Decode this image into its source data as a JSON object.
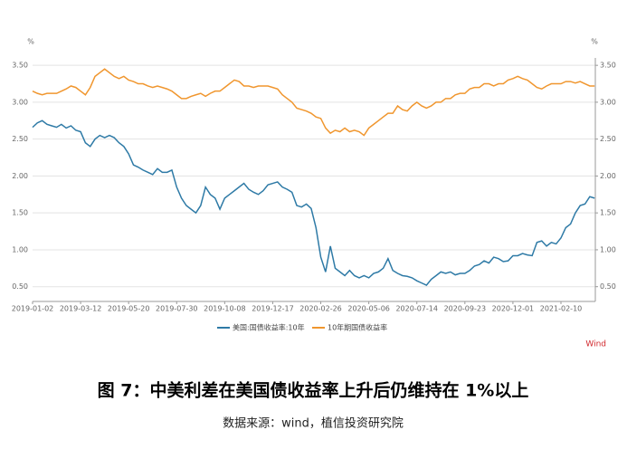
{
  "chart_data": {
    "type": "line",
    "ylabel": "%",
    "y2label": "%",
    "ylim": [
      0.3,
      3.6
    ],
    "y2lim": [
      0.3,
      3.6
    ],
    "yticks": [
      {
        "value": 0.5,
        "label": "0.50"
      },
      {
        "value": 1,
        "label": "1.00"
      },
      {
        "value": 1.5,
        "label": "1.50"
      },
      {
        "value": 2,
        "label": "2.00"
      },
      {
        "value": 2.5,
        "label": "2.50"
      },
      {
        "value": 3,
        "label": "3.00"
      },
      {
        "value": 3.5,
        "label": "3.50"
      }
    ],
    "y2ticks": [
      {
        "value": 0.5,
        "label": "0.50"
      },
      {
        "value": 1,
        "label": "1.00"
      },
      {
        "value": 1.5,
        "label": "1.50"
      },
      {
        "value": 2,
        "label": "2.00"
      },
      {
        "value": 2.5,
        "label": "2.50"
      },
      {
        "value": 3,
        "label": "3.00"
      },
      {
        "value": 3.5,
        "label": "3.50"
      }
    ],
    "grid": true,
    "legend": "bottom",
    "categories": [
      "2019-01-02",
      null,
      null,
      null,
      null,
      null,
      null,
      null,
      null,
      null,
      "2019-03-12",
      null,
      null,
      null,
      null,
      null,
      null,
      null,
      null,
      null,
      "2019-05-20",
      null,
      null,
      null,
      null,
      null,
      null,
      null,
      null,
      null,
      "2019-07-30",
      null,
      null,
      null,
      null,
      null,
      null,
      null,
      null,
      null,
      "2019-10-08",
      null,
      null,
      null,
      null,
      null,
      null,
      null,
      null,
      null,
      "2019-12-17",
      null,
      null,
      null,
      null,
      null,
      null,
      null,
      null,
      null,
      "2020-02-26",
      null,
      null,
      null,
      null,
      null,
      null,
      null,
      null,
      null,
      "2020-05-06",
      null,
      null,
      null,
      null,
      null,
      null,
      null,
      null,
      null,
      "2020-07-14",
      null,
      null,
      null,
      null,
      null,
      null,
      null,
      null,
      null,
      "2020-09-23",
      null,
      null,
      null,
      null,
      null,
      null,
      null,
      null,
      null,
      "2020-12-01",
      null,
      null,
      null,
      null,
      null,
      null,
      null,
      null,
      null,
      "2021-02-10",
      null,
      null,
      null,
      null,
      null,
      null,
      null
    ],
    "series": [
      {
        "name": "美国:国债收益率:10年",
        "color": "#2e7aa6",
        "values": [
          2.66,
          2.72,
          2.75,
          2.7,
          2.68,
          2.66,
          2.7,
          2.65,
          2.68,
          2.62,
          2.6,
          2.45,
          2.4,
          2.5,
          2.55,
          2.52,
          2.55,
          2.52,
          2.45,
          2.4,
          2.3,
          2.15,
          2.12,
          2.08,
          2.05,
          2.02,
          2.1,
          2.05,
          2.05,
          2.08,
          1.85,
          1.7,
          1.6,
          1.55,
          1.5,
          1.6,
          1.85,
          1.75,
          1.7,
          1.55,
          1.7,
          1.75,
          1.8,
          1.85,
          1.9,
          1.82,
          1.78,
          1.75,
          1.8,
          1.88,
          1.9,
          1.92,
          1.85,
          1.82,
          1.78,
          1.6,
          1.58,
          1.62,
          1.56,
          1.3,
          0.9,
          0.7,
          1.05,
          0.75,
          0.7,
          0.65,
          0.72,
          0.65,
          0.62,
          0.65,
          0.62,
          0.68,
          0.7,
          0.75,
          0.88,
          0.72,
          0.68,
          0.65,
          0.64,
          0.62,
          0.58,
          0.55,
          0.52,
          0.6,
          0.65,
          0.7,
          0.68,
          0.7,
          0.66,
          0.68,
          0.68,
          0.72,
          0.78,
          0.8,
          0.85,
          0.82,
          0.9,
          0.88,
          0.84,
          0.85,
          0.92,
          0.92,
          0.95,
          0.93,
          0.92,
          1.1,
          1.12,
          1.05,
          1.1,
          1.08,
          1.16,
          1.3,
          1.35,
          1.5,
          1.6,
          1.62,
          1.72,
          1.7
        ]
      },
      {
        "name": "10年期国债收益率",
        "color": "#f0962e",
        "values": [
          3.15,
          3.12,
          3.1,
          3.12,
          3.12,
          3.12,
          3.15,
          3.18,
          3.22,
          3.2,
          3.15,
          3.1,
          3.2,
          3.35,
          3.4,
          3.45,
          3.4,
          3.35,
          3.32,
          3.35,
          3.3,
          3.28,
          3.25,
          3.25,
          3.22,
          3.2,
          3.22,
          3.2,
          3.18,
          3.15,
          3.1,
          3.05,
          3.05,
          3.08,
          3.1,
          3.12,
          3.08,
          3.12,
          3.15,
          3.15,
          3.2,
          3.25,
          3.3,
          3.28,
          3.22,
          3.22,
          3.2,
          3.22,
          3.22,
          3.22,
          3.2,
          3.18,
          3.1,
          3.05,
          3.0,
          2.92,
          2.9,
          2.88,
          2.85,
          2.8,
          2.78,
          2.65,
          2.58,
          2.62,
          2.6,
          2.65,
          2.6,
          2.62,
          2.6,
          2.55,
          2.65,
          2.7,
          2.75,
          2.8,
          2.85,
          2.85,
          2.95,
          2.9,
          2.88,
          2.95,
          3.0,
          2.95,
          2.92,
          2.95,
          3.0,
          3.0,
          3.05,
          3.05,
          3.1,
          3.12,
          3.12,
          3.18,
          3.2,
          3.2,
          3.25,
          3.25,
          3.22,
          3.25,
          3.25,
          3.3,
          3.32,
          3.35,
          3.32,
          3.3,
          3.25,
          3.2,
          3.18,
          3.22,
          3.25,
          3.25,
          3.25,
          3.28,
          3.28,
          3.26,
          3.28,
          3.25,
          3.22,
          3.22
        ]
      }
    ],
    "source_tag": "Wind"
  },
  "caption": "图 7：中美利差在美国债收益率上升后仍维持在 1%以上",
  "note": "数据来源：wind，植信投资研究院"
}
